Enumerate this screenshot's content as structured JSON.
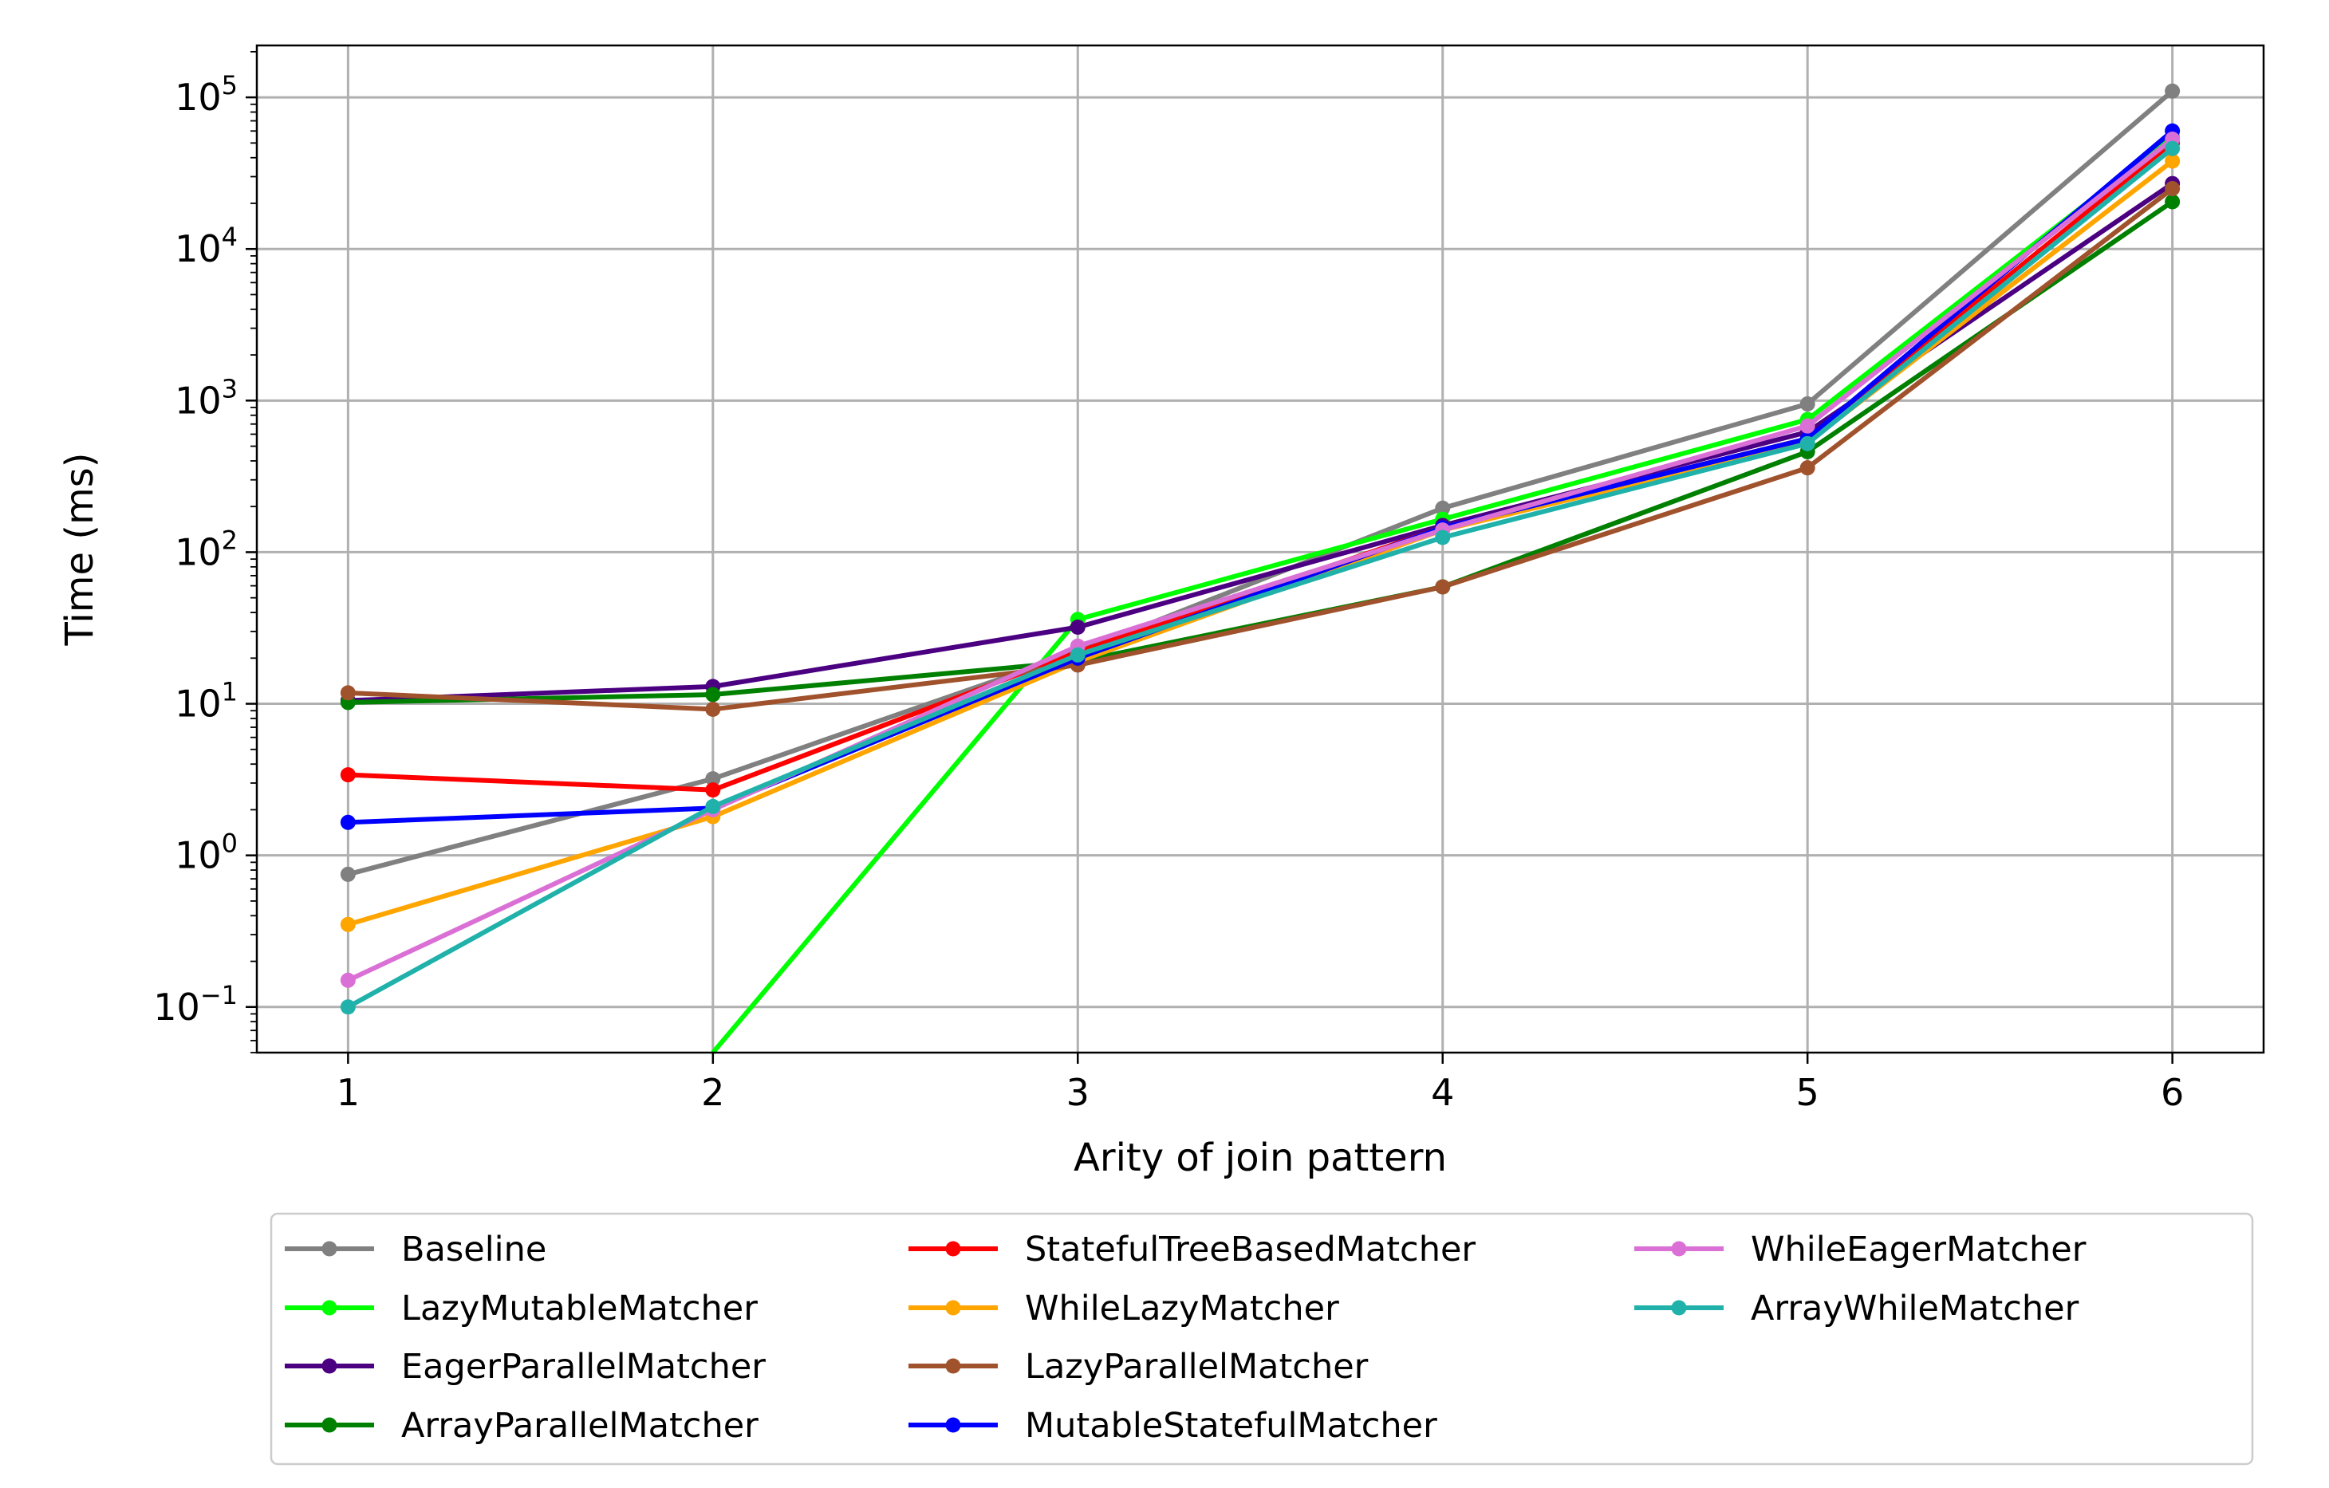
{
  "chart_data": {
    "type": "line",
    "xlabel": "Arity of join pattern",
    "ylabel": "Time (ms)",
    "yscale": "log",
    "xlim": [
      0.75,
      6.25
    ],
    "ylim": [
      0.05,
      220000
    ],
    "x": [
      1,
      2,
      3,
      4,
      5,
      6
    ],
    "x_ticks": [
      "1",
      "2",
      "3",
      "4",
      "5",
      "6"
    ],
    "y_ticks": [
      {
        "base": "10",
        "exp": "−1",
        "value": 0.1
      },
      {
        "base": "10",
        "exp": "0",
        "value": 1
      },
      {
        "base": "10",
        "exp": "1",
        "value": 10
      },
      {
        "base": "10",
        "exp": "2",
        "value": 100
      },
      {
        "base": "10",
        "exp": "3",
        "value": 1000
      },
      {
        "base": "10",
        "exp": "4",
        "value": 10000
      },
      {
        "base": "10",
        "exp": "5",
        "value": 100000
      }
    ],
    "grid": true,
    "legend_position": "below",
    "legend_columns": 3,
    "series": [
      {
        "name": "Baseline",
        "color": "#808080",
        "values": [
          0.75,
          3.2,
          22,
          195,
          950,
          110000
        ]
      },
      {
        "name": "LazyMutableMatcher",
        "color": "#00ff00",
        "values": [
          null,
          0.0,
          36,
          165,
          750,
          55000
        ]
      },
      {
        "name": "EagerParallelMatcher",
        "color": "#4b0082",
        "values": [
          10.5,
          13,
          32,
          150,
          620,
          27000
        ]
      },
      {
        "name": "ArrayParallelMatcher",
        "color": "#008000",
        "values": [
          10.2,
          11.5,
          19,
          59,
          460,
          20500
        ]
      },
      {
        "name": "StatefulTreeBasedMatcher",
        "color": "#ff0000",
        "values": [
          3.4,
          2.7,
          22,
          145,
          560,
          50000
        ]
      },
      {
        "name": "WhileLazyMatcher",
        "color": "#ffa500",
        "values": [
          0.35,
          1.8,
          19,
          140,
          530,
          38000
        ]
      },
      {
        "name": "LazyParallelMatcher",
        "color": "#a0522d",
        "values": [
          11.8,
          9.2,
          18,
          59,
          360,
          25000
        ]
      },
      {
        "name": "MutableStatefulMatcher",
        "color": "#0000ff",
        "values": [
          1.65,
          2.05,
          20,
          145,
          560,
          60000
        ]
      },
      {
        "name": "WhileEagerMatcher",
        "color": "#da70d6",
        "values": [
          0.15,
          2.0,
          24,
          140,
          680,
          53000
        ]
      },
      {
        "name": "ArrayWhileMatcher",
        "color": "#20b2aa",
        "values": [
          0.1,
          2.1,
          21,
          125,
          520,
          46000
        ]
      }
    ]
  }
}
